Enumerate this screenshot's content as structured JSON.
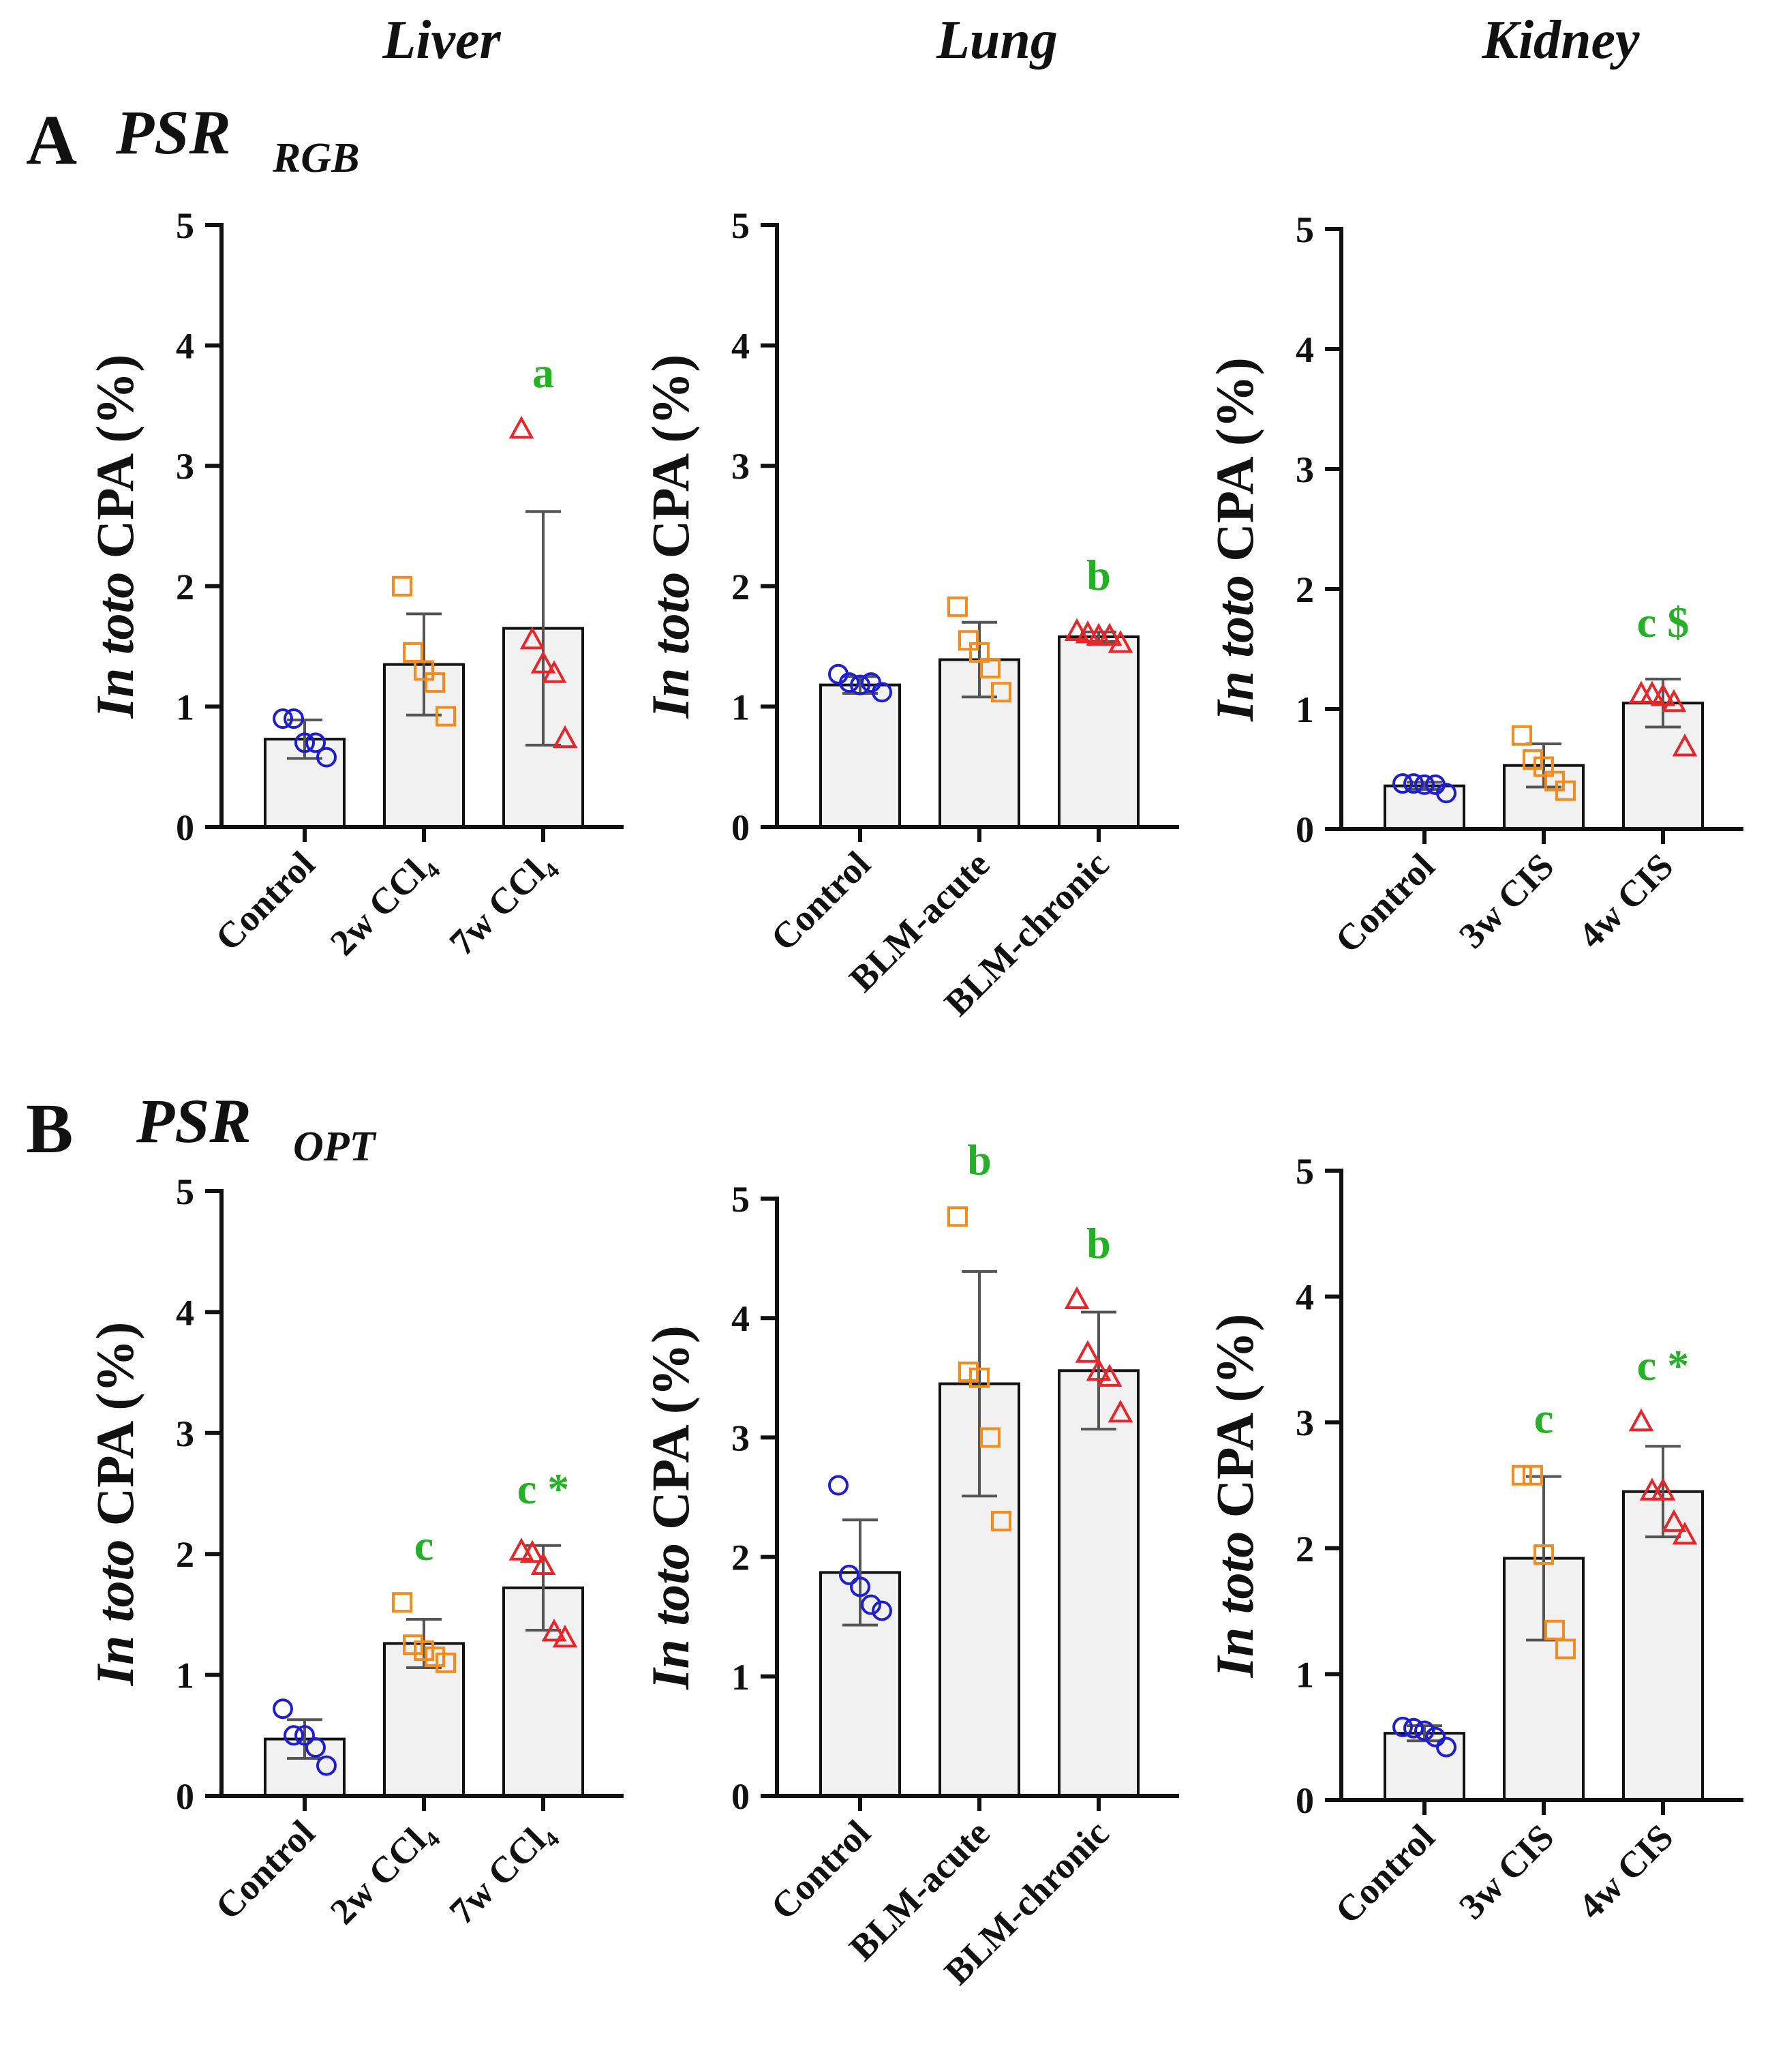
{
  "column_titles": [
    "Liver",
    "Lung",
    "Kidney"
  ],
  "rows": [
    {
      "letter": "A",
      "method": "PSR",
      "subscript": "RGB"
    },
    {
      "letter": "B",
      "method": "PSR",
      "subscript": "OPT"
    }
  ],
  "colors": {
    "control": "#1f1fd0",
    "mid": "#f28c1e",
    "high": "#e8262a",
    "significance": "#25b125",
    "bar_fill": "#f1f1f1"
  },
  "chart_data": [
    {
      "id": "A-liver",
      "type": "bar",
      "title": "Liver",
      "ylabel_italic": "In toto",
      "ylabel_rest": "CPA (%)",
      "ylim": [
        0,
        5
      ],
      "yticks": [
        "0",
        "1",
        "2",
        "3",
        "4",
        "5"
      ],
      "categories": [
        "Control",
        "2w CCl₄",
        "7w CCl₄"
      ],
      "markers": [
        "circle",
        "square",
        "triangle"
      ],
      "means": [
        0.73,
        1.35,
        1.65
      ],
      "sd": [
        0.16,
        0.42,
        0.97
      ],
      "points": [
        [
          0.9,
          0.9,
          0.7,
          0.7,
          0.58
        ],
        [
          2.0,
          1.45,
          1.3,
          1.2,
          0.92
        ],
        [
          3.3,
          1.55,
          1.35,
          1.27,
          0.73
        ]
      ],
      "significance": [
        "",
        "",
        "a"
      ]
    },
    {
      "id": "A-lung",
      "type": "bar",
      "title": "Lung",
      "ylabel_italic": "In toto",
      "ylabel_rest": "CPA (%)",
      "ylim": [
        0,
        5
      ],
      "yticks": [
        "0",
        "1",
        "2",
        "3",
        "4",
        "5"
      ],
      "categories": [
        "Control",
        "BLM-acute",
        "BLM-chronic"
      ],
      "markers": [
        "circle",
        "square",
        "triangle"
      ],
      "means": [
        1.18,
        1.39,
        1.58
      ],
      "sd": [
        0.07,
        0.31,
        0.04
      ],
      "points": [
        [
          1.27,
          1.2,
          1.18,
          1.2,
          1.12
        ],
        [
          1.83,
          1.55,
          1.45,
          1.32,
          1.12
        ],
        [
          1.62,
          1.6,
          1.58,
          1.58,
          1.52
        ]
      ],
      "significance": [
        "",
        "",
        "b"
      ]
    },
    {
      "id": "A-kidney",
      "type": "bar",
      "title": "Kidney",
      "ylabel_italic": "In toto",
      "ylabel_rest": "CPA (%)",
      "ylim": [
        0,
        5
      ],
      "yticks": [
        "0",
        "1",
        "2",
        "3",
        "4",
        "5"
      ],
      "categories": [
        "Control",
        "3w CIS",
        "4w CIS"
      ],
      "markers": [
        "circle",
        "square",
        "triangle"
      ],
      "means": [
        0.36,
        0.53,
        1.05
      ],
      "sd": [
        0.03,
        0.18,
        0.2
      ],
      "points": [
        [
          0.38,
          0.38,
          0.37,
          0.37,
          0.3
        ],
        [
          0.78,
          0.58,
          0.52,
          0.4,
          0.32
        ],
        [
          1.12,
          1.12,
          1.1,
          1.05,
          0.68
        ]
      ],
      "significance": [
        "",
        "",
        "c $"
      ]
    },
    {
      "id": "B-liver",
      "type": "bar",
      "title": "Liver",
      "ylabel_italic": "In toto",
      "ylabel_rest": "CPA (%)",
      "ylim": [
        0,
        5
      ],
      "yticks": [
        "0",
        "1",
        "2",
        "3",
        "4",
        "5"
      ],
      "categories": [
        "Control",
        "2w CCl₄",
        "7w CCl₄"
      ],
      "markers": [
        "circle",
        "square",
        "triangle"
      ],
      "means": [
        0.47,
        1.26,
        1.72
      ],
      "sd": [
        0.16,
        0.2,
        0.35
      ],
      "points": [
        [
          0.72,
          0.5,
          0.5,
          0.4,
          0.25
        ],
        [
          1.6,
          1.25,
          1.2,
          1.15,
          1.1
        ],
        [
          2.02,
          2.0,
          1.9,
          1.35,
          1.3
        ]
      ],
      "significance": [
        "",
        "c",
        "c *"
      ]
    },
    {
      "id": "B-lung",
      "type": "bar",
      "title": "Lung",
      "ylabel_italic": "In toto",
      "ylabel_rest": "CPA (%)",
      "ylim": [
        0,
        5
      ],
      "yticks": [
        "0",
        "1",
        "2",
        "3",
        "4",
        "5"
      ],
      "categories": [
        "Control",
        "BLM-acute",
        "BLM-chronic"
      ],
      "markers": [
        "circle",
        "square",
        "triangle"
      ],
      "means": [
        1.87,
        3.45,
        3.56
      ],
      "sd": [
        0.44,
        0.94,
        0.49
      ],
      "points": [
        [
          2.6,
          1.85,
          1.75,
          1.6,
          1.55
        ],
        [
          4.85,
          3.55,
          3.5,
          3.0,
          2.3
        ],
        [
          4.15,
          3.7,
          3.55,
          3.5,
          3.2
        ]
      ],
      "significance": [
        "",
        "b",
        "b"
      ]
    },
    {
      "id": "B-kidney",
      "type": "bar",
      "title": "Kidney",
      "ylabel_italic": "In toto",
      "ylabel_rest": "CPA (%)",
      "ylim": [
        0,
        5
      ],
      "yticks": [
        "0",
        "1",
        "2",
        "3",
        "4",
        "5"
      ],
      "categories": [
        "Control",
        "3w CIS",
        "4w CIS"
      ],
      "markers": [
        "circle",
        "square",
        "triangle"
      ],
      "means": [
        0.53,
        1.92,
        2.45
      ],
      "sd": [
        0.06,
        0.65,
        0.36
      ],
      "points": [
        [
          0.58,
          0.57,
          0.55,
          0.5,
          0.42
        ],
        [
          2.58,
          2.58,
          1.95,
          1.35,
          1.2
        ],
        [
          3.0,
          2.45,
          2.45,
          2.2,
          2.1
        ]
      ],
      "significance": [
        "",
        "c",
        "c *"
      ]
    }
  ]
}
